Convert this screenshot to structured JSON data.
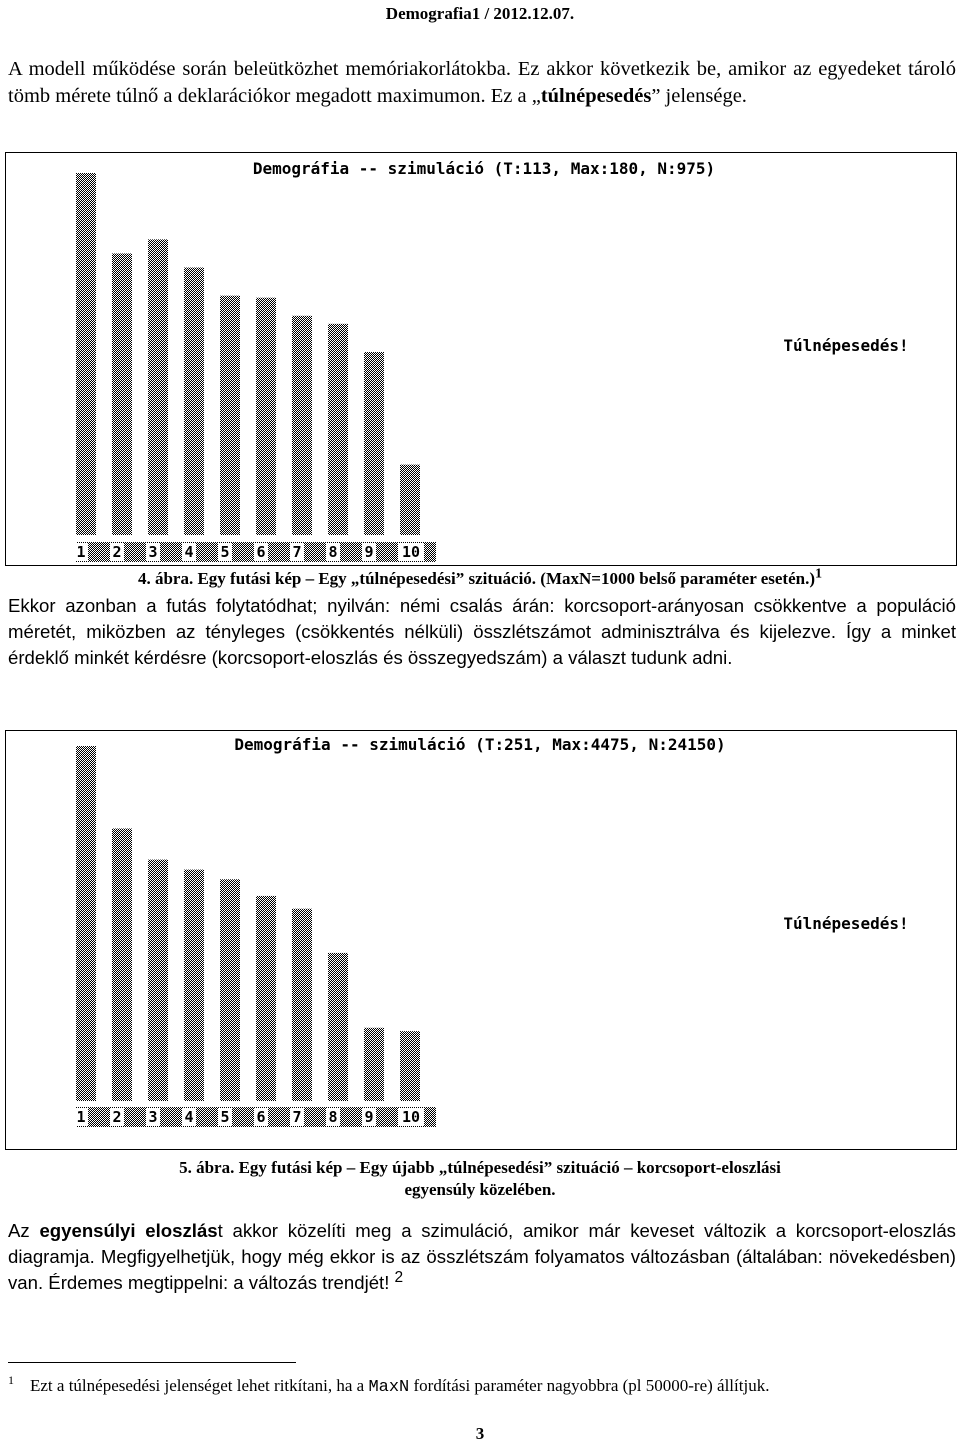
{
  "header": "Demografia1 / 2012.12.07.",
  "intro": {
    "part1": "A modell működése során beleütközhet memóriakorlátokba. Ez akkor következik be, amikor az egyedeket tároló tömb mérete túlnő a deklarációkor megadott maximumon. Ez a „",
    "bold": "túlnépesedés",
    "part2": "” jelensége."
  },
  "figure1": {
    "caption_main": "4. ábra. Egy futási kép – Egy „túlnépesedési” szituáció. (MaxN=1000 belső paraméter esetén.)",
    "caption_sup": "1"
  },
  "middle_paragraph": "Ekkor azonban a futás folytatódhat; nyilván: némi csalás árán: korcsoport-arányosan csökkentve a populáció méretét, miközben az tényleges (csökkentés nélküli) összlétszámot adminisztrálva és kijelezve. Így a minket érdeklő minkét kérdésre (korcsoport-eloszlás és összegyedszám) a választ tudunk adni.",
  "figure2": {
    "caption_line1": "5. ábra. Egy futási kép – Egy újabb „túlnépesedési” szituáció – korcsoport-eloszlási",
    "caption_line2": "egyensúly közelében."
  },
  "final_paragraph": {
    "p1": "Az ",
    "b1": "egyensúlyi eloszlás",
    "p2": "t akkor közelíti meg a szimuláció, amikor már keveset változik a korcsoport-eloszlás diagramja. Megfigyelhetjük, hogy még ekkor is az összlétszám folyamatos változásban (általában: növekedésben) van. Érdemes megtippelni: a változás trendjét! ",
    "sup": "2"
  },
  "footnote": {
    "number": "1",
    "text_before": "Ezt a túlnépesedési jelenséget lehet ritkítani, ha a ",
    "code": "MaxN",
    "text_after": " fordítási paraméter nagyobbra (pl 50000-re) állítjuk."
  },
  "page_number": "3",
  "chart_data": [
    {
      "type": "bar",
      "title": "Demográfia -- szimuláció (T:113, Max:180, N:975)",
      "categories": [
        "1",
        "2",
        "3",
        "4",
        "5",
        "6",
        "7",
        "8",
        "9",
        "10"
      ],
      "values": [
        180,
        140,
        147,
        133,
        119,
        118,
        109,
        105,
        91,
        35
      ],
      "ylim": [
        0,
        180
      ],
      "annotation": "Túlnépesedés!",
      "bar_pattern": "checker"
    },
    {
      "type": "bar",
      "title": "Demográfia -- szimuláció (T:251, Max:4475, N:24150)",
      "categories": [
        "1",
        "2",
        "3",
        "4",
        "5",
        "6",
        "7",
        "8",
        "9",
        "10"
      ],
      "values": [
        4475,
        3435,
        3043,
        2917,
        2795,
        2585,
        2424,
        1867,
        923,
        881
      ],
      "ylim": [
        0,
        4475
      ],
      "annotation": "Túlnépesedés!",
      "bar_pattern": "checker"
    }
  ]
}
